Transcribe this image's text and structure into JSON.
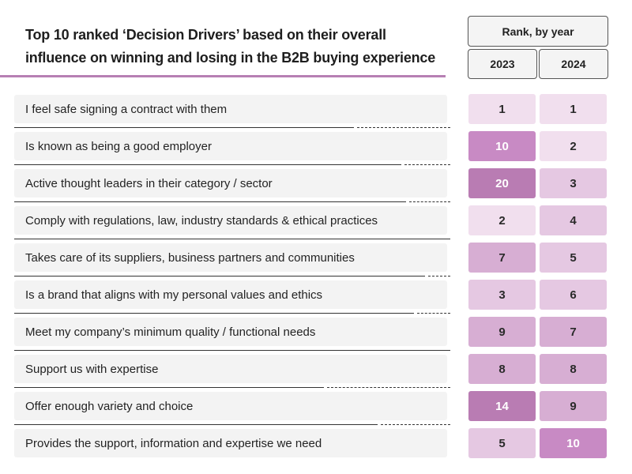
{
  "title_line1": "Top 10 ranked ‘Decision Drivers’ based on their overall",
  "title_line2": "influence on winning and losing in the B2B buying experience",
  "header": {
    "rank_label": "Rank, by year",
    "year_a": "2023",
    "year_b": "2024"
  },
  "chart_data": {
    "type": "table",
    "title": "Top 10 ranked ‘Decision Drivers’ based on their overall influence on winning and losing in the B2B buying experience",
    "columns": [
      "2023",
      "2024"
    ],
    "rows": [
      {
        "driver": "I feel safe signing a contract with them",
        "rank_2023": 1,
        "rank_2024": 1
      },
      {
        "driver": "Is known as being a good employer",
        "rank_2023": 10,
        "rank_2024": 2
      },
      {
        "driver": "Active thought leaders in their category / sector",
        "rank_2023": 20,
        "rank_2024": 3
      },
      {
        "driver": "Comply with regulations, law, industry standards & ethical practices",
        "rank_2023": 2,
        "rank_2024": 4
      },
      {
        "driver": "Takes care of its suppliers, business partners and communities",
        "rank_2023": 7,
        "rank_2024": 5
      },
      {
        "driver": "Is a brand that aligns with my personal values and ethics",
        "rank_2023": 3,
        "rank_2024": 6
      },
      {
        "driver": "Meet my company’s minimum quality / functional needs",
        "rank_2023": 9,
        "rank_2024": 7
      },
      {
        "driver": "Support us with expertise",
        "rank_2023": 8,
        "rank_2024": 8
      },
      {
        "driver": "Offer enough variety and choice",
        "rank_2023": 14,
        "rank_2024": 9
      },
      {
        "driver": "Provides the support, information and expertise we need",
        "rank_2023": 5,
        "rank_2024": 10
      }
    ]
  },
  "colors": {
    "title_rule": "#b77fb3",
    "shade_lightest": "#f1dfee",
    "shade_light": "#e5c8e2",
    "shade_mid": "#d7aed3",
    "shade_strong": "#c88ac4",
    "shade_darkest": "#b97cb3"
  }
}
